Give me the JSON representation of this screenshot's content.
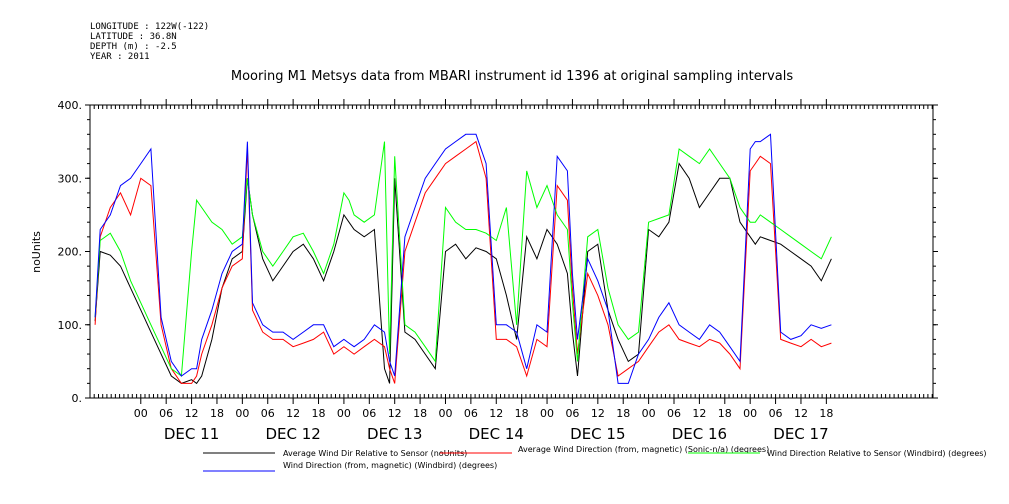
{
  "header": {
    "longitude": "LONGITUDE : 122W(-122)",
    "latitude": "LATITUDE : 36.8N",
    "depth": "DEPTH (m) : -2.5",
    "year": "YEAR : 2011"
  },
  "chart_data": {
    "type": "line",
    "title": "Mooring M1 Metsys data from MBARI instrument id 1396 at original sampling intervals",
    "ylabel": "noUnits",
    "ylim": [
      0,
      400
    ],
    "y_ticks": [
      "0.",
      "100.",
      "200.",
      "300.",
      "400."
    ],
    "y_tick_values": [
      0,
      100,
      200,
      300,
      400
    ],
    "xlim": [
      -0.5,
      7.8
    ],
    "x_ticks": [
      "00",
      "06",
      "12",
      "18",
      "00",
      "06",
      "12",
      "18",
      "00",
      "06",
      "12",
      "18",
      "00",
      "06",
      "12",
      "18",
      "00",
      "06",
      "12",
      "18",
      "00",
      "06",
      "12",
      "18",
      "00",
      "06",
      "12",
      "18"
    ],
    "x_tick_values": [
      0,
      0.25,
      0.5,
      0.75,
      1,
      1.25,
      1.5,
      1.75,
      2,
      2.25,
      2.5,
      2.75,
      3,
      3.25,
      3.5,
      3.75,
      4,
      4.25,
      4.5,
      4.75,
      5,
      5.25,
      5.5,
      5.75,
      6,
      6.25,
      6.5,
      6.75
    ],
    "day_labels": [
      "DEC 11",
      "DEC 12",
      "DEC 13",
      "DEC 14",
      "DEC 15",
      "DEC 16",
      "DEC 17"
    ],
    "day_centers": [
      0.5,
      1.5,
      2.5,
      3.5,
      4.5,
      5.5,
      6.5
    ],
    "grid": false,
    "legend_position": "bottom",
    "series": [
      {
        "name": "Average Wind Dir Relative to Sensor (noUnits)",
        "color": "#000000",
        "x": [
          -0.45,
          -0.4,
          -0.3,
          -0.2,
          -0.1,
          0,
          0.1,
          0.2,
          0.3,
          0.4,
          0.5,
          0.55,
          0.6,
          0.7,
          0.8,
          0.9,
          1,
          1.05,
          1.1,
          1.2,
          1.3,
          1.4,
          1.5,
          1.6,
          1.7,
          1.8,
          1.9,
          2,
          2.05,
          2.1,
          2.2,
          2.3,
          2.4,
          2.45,
          2.5,
          2.6,
          2.7,
          2.8,
          2.9,
          3,
          3.1,
          3.2,
          3.3,
          3.4,
          3.5,
          3.6,
          3.7,
          3.8,
          3.9,
          4,
          4.1,
          4.2,
          4.25,
          4.3,
          4.4,
          4.5,
          4.6,
          4.7,
          4.8,
          4.9,
          5,
          5.1,
          5.2,
          5.3,
          5.4,
          5.5,
          5.6,
          5.7,
          5.8,
          5.9,
          6,
          6.05,
          6.1,
          6.2,
          6.3,
          6.4,
          6.5,
          6.6,
          6.7,
          6.8
        ],
        "y": [
          105,
          200,
          195,
          180,
          150,
          120,
          90,
          60,
          30,
          20,
          25,
          20,
          30,
          80,
          150,
          190,
          200,
          300,
          250,
          190,
          160,
          180,
          200,
          210,
          190,
          160,
          200,
          250,
          240,
          230,
          220,
          230,
          40,
          20,
          300,
          90,
          80,
          60,
          40,
          200,
          210,
          190,
          205,
          200,
          190,
          140,
          80,
          220,
          190,
          230,
          210,
          170,
          90,
          30,
          200,
          210,
          120,
          80,
          50,
          60,
          230,
          220,
          240,
          320,
          300,
          260,
          280,
          300,
          300,
          240,
          220,
          210,
          220,
          215,
          210,
          200,
          190,
          180,
          160,
          190
        ]
      },
      {
        "name": "Average Wind Direction (from, magnetic) (Sonic-n/a) (degrees)",
        "color": "#ff0000",
        "x": [
          -0.45,
          -0.4,
          -0.3,
          -0.2,
          -0.1,
          0,
          0.1,
          0.2,
          0.3,
          0.4,
          0.5,
          0.55,
          0.6,
          0.7,
          0.8,
          0.9,
          1,
          1.05,
          1.1,
          1.2,
          1.3,
          1.4,
          1.5,
          1.6,
          1.7,
          1.8,
          1.9,
          2,
          2.05,
          2.1,
          2.2,
          2.3,
          2.4,
          2.45,
          2.5,
          2.6,
          2.7,
          2.8,
          2.9,
          3,
          3.1,
          3.2,
          3.3,
          3.4,
          3.5,
          3.6,
          3.7,
          3.8,
          3.9,
          4,
          4.1,
          4.2,
          4.25,
          4.3,
          4.4,
          4.5,
          4.6,
          4.7,
          4.8,
          4.9,
          5,
          5.1,
          5.2,
          5.3,
          5.4,
          5.5,
          5.6,
          5.7,
          5.8,
          5.9,
          6,
          6.05,
          6.1,
          6.2,
          6.3,
          6.4,
          6.5,
          6.6,
          6.7,
          6.8
        ],
        "y": [
          100,
          220,
          260,
          280,
          250,
          300,
          290,
          100,
          40,
          20,
          20,
          30,
          60,
          100,
          150,
          180,
          190,
          340,
          120,
          90,
          80,
          80,
          70,
          75,
          80,
          90,
          60,
          70,
          65,
          60,
          70,
          80,
          70,
          40,
          20,
          200,
          240,
          280,
          300,
          320,
          330,
          340,
          350,
          300,
          80,
          80,
          70,
          30,
          80,
          70,
          290,
          270,
          150,
          60,
          170,
          140,
          100,
          30,
          40,
          50,
          70,
          90,
          100,
          80,
          75,
          70,
          80,
          75,
          60,
          40,
          310,
          320,
          330,
          320,
          80,
          75,
          70,
          80,
          70,
          75
        ]
      },
      {
        "name": "Wind Direction Relative to Sensor (Windbird) (degrees)",
        "color": "#00ff00",
        "x": [
          -0.45,
          -0.4,
          -0.3,
          -0.2,
          -0.1,
          0,
          0.1,
          0.2,
          0.3,
          0.4,
          0.5,
          0.55,
          0.6,
          0.7,
          0.8,
          0.9,
          1,
          1.05,
          1.1,
          1.2,
          1.3,
          1.4,
          1.5,
          1.6,
          1.7,
          1.8,
          1.9,
          2,
          2.05,
          2.1,
          2.2,
          2.3,
          2.4,
          2.45,
          2.5,
          2.6,
          2.7,
          2.8,
          2.9,
          3,
          3.1,
          3.2,
          3.3,
          3.4,
          3.5,
          3.6,
          3.7,
          3.8,
          3.9,
          4,
          4.1,
          4.2,
          4.25,
          4.3,
          4.4,
          4.5,
          4.6,
          4.7,
          4.8,
          4.9,
          5,
          5.1,
          5.2,
          5.3,
          5.4,
          5.5,
          5.6,
          5.7,
          5.8,
          5.9,
          6,
          6.05,
          6.1,
          6.2,
          6.3,
          6.4,
          6.5,
          6.6,
          6.7,
          6.8
        ],
        "y": [
          110,
          215,
          225,
          200,
          160,
          130,
          100,
          70,
          40,
          30,
          200,
          270,
          260,
          240,
          230,
          210,
          220,
          300,
          250,
          200,
          180,
          200,
          220,
          225,
          200,
          170,
          210,
          280,
          270,
          250,
          240,
          250,
          350,
          60,
          330,
          100,
          90,
          70,
          50,
          260,
          240,
          230,
          230,
          225,
          215,
          260,
          100,
          310,
          260,
          290,
          250,
          230,
          130,
          50,
          220,
          230,
          150,
          100,
          80,
          90,
          240,
          245,
          250,
          340,
          330,
          320,
          340,
          320,
          300,
          260,
          240,
          240,
          250,
          240,
          230,
          220,
          210,
          200,
          190,
          220
        ]
      },
      {
        "name": "Wind Direction (from, magnetic) (Windbird) (degrees)",
        "color": "#0000ff",
        "x": [
          -0.45,
          -0.4,
          -0.3,
          -0.2,
          -0.1,
          0,
          0.1,
          0.2,
          0.3,
          0.4,
          0.5,
          0.55,
          0.6,
          0.7,
          0.8,
          0.9,
          1,
          1.05,
          1.1,
          1.2,
          1.3,
          1.4,
          1.5,
          1.6,
          1.7,
          1.8,
          1.9,
          2,
          2.05,
          2.1,
          2.2,
          2.3,
          2.4,
          2.45,
          2.5,
          2.6,
          2.7,
          2.8,
          2.9,
          3,
          3.1,
          3.2,
          3.3,
          3.4,
          3.5,
          3.6,
          3.7,
          3.8,
          3.9,
          4,
          4.1,
          4.2,
          4.25,
          4.3,
          4.4,
          4.5,
          4.6,
          4.7,
          4.8,
          4.9,
          5,
          5.1,
          5.2,
          5.3,
          5.4,
          5.5,
          5.6,
          5.7,
          5.8,
          5.9,
          6,
          6.05,
          6.1,
          6.2,
          6.3,
          6.4,
          6.5,
          6.6,
          6.7,
          6.8
        ],
        "y": [
          110,
          230,
          250,
          290,
          300,
          320,
          340,
          110,
          50,
          30,
          40,
          40,
          80,
          120,
          170,
          200,
          210,
          350,
          130,
          100,
          90,
          90,
          80,
          90,
          100,
          100,
          70,
          80,
          75,
          70,
          80,
          100,
          90,
          50,
          30,
          220,
          260,
          300,
          320,
          340,
          350,
          360,
          360,
          320,
          100,
          100,
          90,
          40,
          100,
          90,
          330,
          310,
          170,
          80,
          190,
          160,
          120,
          20,
          20,
          60,
          80,
          110,
          130,
          100,
          90,
          80,
          100,
          90,
          70,
          50,
          340,
          350,
          350,
          360,
          90,
          80,
          85,
          100,
          95,
          100
        ]
      }
    ]
  }
}
